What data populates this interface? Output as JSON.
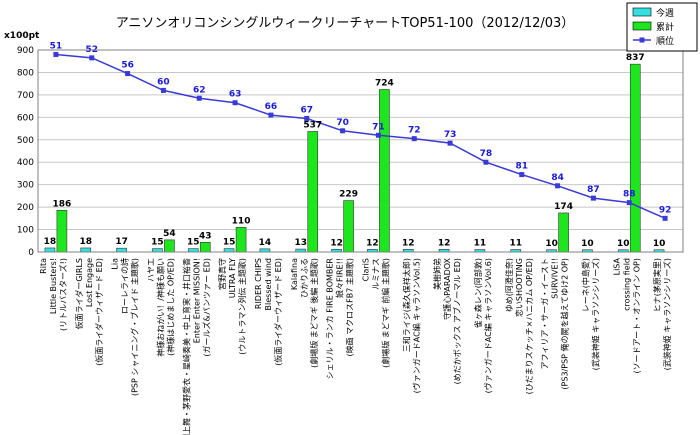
{
  "chart_data": {
    "type": "bar",
    "title": "アニソンオリコンシングルウィークリーチャートTOP51-100（2012/12/03）",
    "ylabel": "x100pt",
    "ylim": [
      0,
      900
    ],
    "yticks": [
      0,
      100,
      200,
      300,
      400,
      500,
      600,
      700,
      800,
      900
    ],
    "grid": true,
    "legend_position": "top-right",
    "colors": {
      "weekly": "#33e0e0",
      "total": "#1ee61e",
      "rank": "#3a3ad6"
    },
    "categories": [
      "Rita\nLittle Busters!\n(リトルバスターズ!)",
      "仮面ライダーGIRLS\nLost Engage\n(仮面ライダーウィザード ED)",
      "Lia\nローレライの詩\n(PSP シャイニング・ブレイド 主題歌)",
      "ハヤエ\n神様おねがい！/神様も願い\n(神様はじめました OP/ED)",
      "渕上舞・茅野愛衣・星崎奏美・中上育実・井口裕香\nEnter Enter MISSION!\n(ガールズ&パンツァー ED)",
      "宮野真守\nULTRA FLY\n(ウルトラマン列伝 主題歌)",
      "RIDER CHIPS\nBlessed wind\n(仮面ライダーウィザード ED)",
      "Kalafina\nひかりふる\n(劇場版 まどマギ 後編 主題歌)",
      "シェリル・ランカ FIRE BOMBER\n娘々FIRE!!\n(映画 マクロスFB7 主題歌)",
      "ClariS\nルミナス\n(劇場版 まどマギ 前編 主題歌)",
      "三和ライジ(森久保祥太郎)\n(ヴァンガードAC編 キャラソンVol.5)",
      "美樹姉弟\n守護心PARADOX\n(めだかボックス アブノーマル ED)",
      "雀ヶ森レン(阿部敦)\n(ヴァンガードAC編 キャラソンVol.6)",
      "ゆめ(阿澄佳奈)\n恋いSHOOTING\n(ひだまりスケッチ×ハニカム OP/ED)",
      "アフィリア・サーガ・イースト\nSURVIVE!!\n(PS3/PSP 俺の屍を越えてゆけ2 OP)",
      "レーネ(中島愛)\n(武装神姫 キャラソンシリーズ)",
      "LiSA\ncrossing field\n(ソードアート・オンライン OP)",
      "ヒナ(茅原実里)\n(武装神姫 キャラソンシリーズ)"
    ],
    "series": [
      {
        "name": "今週",
        "values": [
          18,
          18,
          17,
          15,
          15,
          15,
          14,
          13,
          12,
          12,
          12,
          12,
          11,
          11,
          10,
          10,
          10,
          10
        ]
      },
      {
        "name": "累計",
        "values": [
          186,
          null,
          null,
          54,
          43,
          110,
          null,
          537,
          229,
          724,
          null,
          null,
          null,
          null,
          174,
          null,
          837,
          null
        ]
      },
      {
        "name": "順位",
        "values": [
          51,
          52,
          56,
          60,
          62,
          63,
          66,
          67,
          70,
          71,
          72,
          73,
          78,
          81,
          84,
          87,
          88,
          92
        ]
      }
    ],
    "rank_line_y": [
      880,
      865,
      795,
      720,
      685,
      665,
      610,
      595,
      540,
      520,
      505,
      485,
      400,
      345,
      295,
      240,
      220,
      150
    ]
  }
}
